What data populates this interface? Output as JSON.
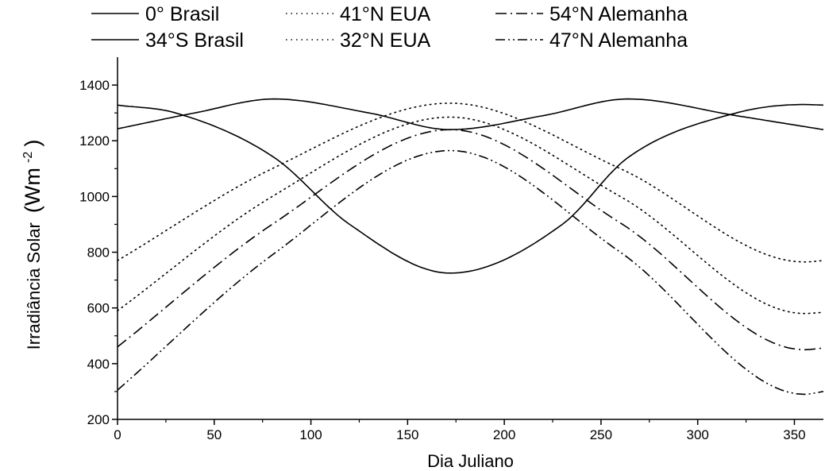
{
  "chart_data": {
    "type": "line",
    "xlabel": "Dia Juliano",
    "ylabel": "Irradiância Solar",
    "ylabel_unit_base": "(Wm",
    "ylabel_unit_exp": "-2",
    "ylabel_unit_close": ")",
    "xlim": [
      0,
      365
    ],
    "ylim": [
      200,
      1500
    ],
    "xticks": [
      0,
      50,
      100,
      150,
      200,
      250,
      300,
      350
    ],
    "yticks": [
      200,
      400,
      600,
      800,
      1000,
      1200,
      1400
    ],
    "grid": false,
    "legend_placement": "top",
    "series": [
      {
        "name": "0° Brasil",
        "style": "solid",
        "x": [
          0,
          40,
          81,
          130,
          172,
          220,
          264,
          320,
          365
        ],
        "y": [
          1243,
          1300,
          1350,
          1300,
          1240,
          1290,
          1350,
          1290,
          1240
        ]
      },
      {
        "name": "41°N EUA",
        "style": "dotted",
        "x": [
          0,
          80,
          172,
          260,
          355,
          365
        ],
        "y": [
          770,
          1100,
          1335,
          1100,
          765,
          770
        ]
      },
      {
        "name": "54°N Alemanha",
        "style": "dashdot",
        "x": [
          0,
          80,
          172,
          260,
          355,
          365
        ],
        "y": [
          460,
          900,
          1240,
          905,
          450,
          456
        ]
      },
      {
        "name": "34°S Brasil",
        "style": "solid",
        "x": [
          0,
          30,
          81,
          120,
          172,
          230,
          264,
          320,
          355,
          365
        ],
        "y": [
          1328,
          1300,
          1140,
          900,
          725,
          900,
          1140,
          1300,
          1330,
          1328
        ]
      },
      {
        "name": "32°N EUA",
        "style": "dotted",
        "x": [
          0,
          80,
          172,
          260,
          355,
          365
        ],
        "y": [
          590,
          1000,
          1285,
          1000,
          580,
          584
        ]
      },
      {
        "name": "47°N Alemanha",
        "style": "dashdotdot",
        "x": [
          0,
          80,
          172,
          260,
          355,
          365
        ],
        "y": [
          305,
          790,
          1165,
          800,
          290,
          300
        ]
      }
    ]
  }
}
